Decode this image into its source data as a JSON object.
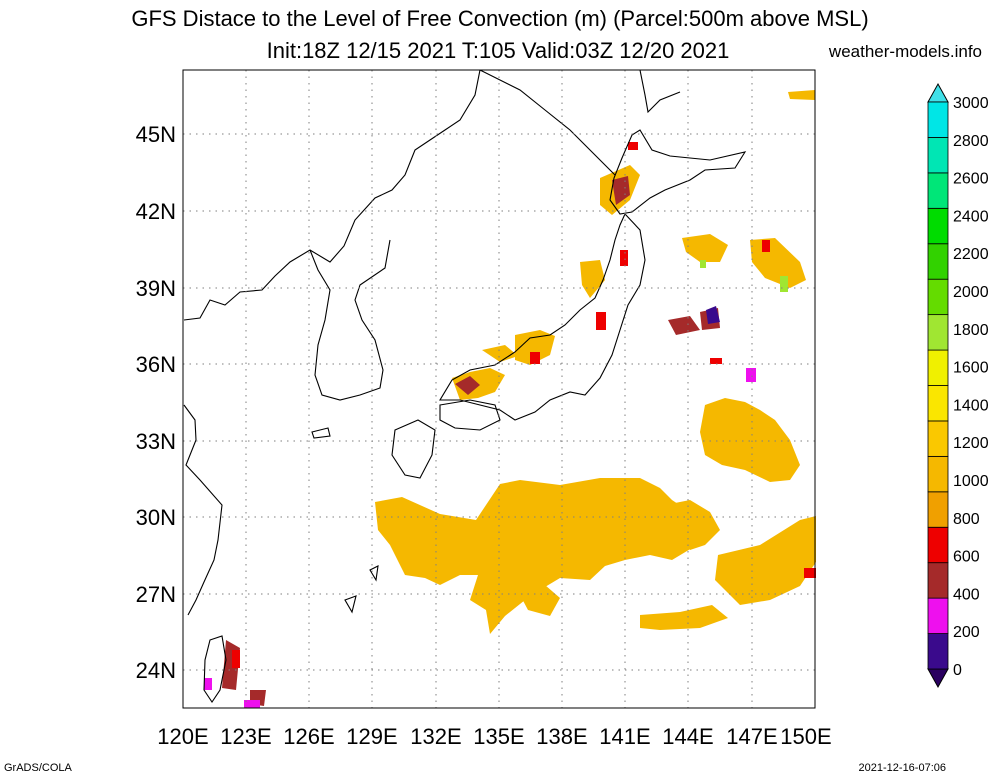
{
  "title_line1": "GFS Distace to the Level of Free Convection (m) (Parcel:500m above MSL)",
  "title_line2": "Init:18Z 12/15 2021 T:105 Valid:03Z 12/20 2021",
  "site": "weather-models.info",
  "footer_left": "GrADS/COLA",
  "footer_right": "2021-12-16-07:06",
  "map": {
    "lon_range": [
      120,
      150
    ],
    "lat_range": [
      22.5,
      47.5
    ],
    "lat_ticks": [
      "45N",
      "42N",
      "39N",
      "36N",
      "33N",
      "30N",
      "27N",
      "24N"
    ],
    "lon_ticks": [
      "120E",
      "123E",
      "126E",
      "129E",
      "132E",
      "135E",
      "138E",
      "141E",
      "144E",
      "147E",
      "150E"
    ]
  },
  "colorbar": {
    "labels": [
      "3000",
      "2800",
      "2600",
      "2400",
      "2200",
      "2000",
      "1800",
      "1600",
      "1400",
      "1200",
      "1000",
      "800",
      "600",
      "400",
      "200",
      "0"
    ],
    "colors": [
      "#3a0a8c",
      "#ee10ee",
      "#a52a2a",
      "#ee0000",
      "#f0a000",
      "#f5b800",
      "#fac800",
      "#fae600",
      "#f0f000",
      "#a0e632",
      "#64dc00",
      "#32d200",
      "#00dc00",
      "#00e678",
      "#00e6b4",
      "#00e6e6"
    ],
    "top_color": "#40e0e8",
    "bottom_color": "#2a0060"
  }
}
